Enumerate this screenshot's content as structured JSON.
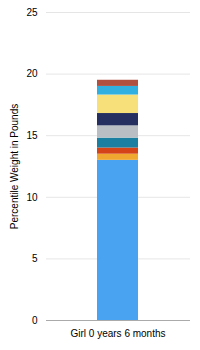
{
  "chart_data": {
    "type": "bar",
    "categories": [
      "Girl 0 years 6 months"
    ],
    "series": [
      {
        "color": "#4aa3f0",
        "values": [
          13.0
        ]
      },
      {
        "color": "#f0a830",
        "values": [
          0.5
        ]
      },
      {
        "color": "#d44418",
        "values": [
          0.5
        ]
      },
      {
        "color": "#1a7fa0",
        "values": [
          0.8
        ]
      },
      {
        "color": "#b8bec4",
        "values": [
          1.0
        ]
      },
      {
        "color": "#253060",
        "values": [
          1.0
        ]
      },
      {
        "color": "#f7e07a",
        "values": [
          1.5
        ]
      },
      {
        "color": "#30b0e0",
        "values": [
          0.7
        ]
      },
      {
        "color": "#b05040",
        "values": [
          0.5
        ]
      }
    ],
    "stacked": true,
    "ylabel": "Percentile Weight in Pounds",
    "ylim": [
      0,
      25
    ],
    "yticks": [
      0,
      5,
      10,
      15,
      20,
      25
    ],
    "grid": true
  }
}
